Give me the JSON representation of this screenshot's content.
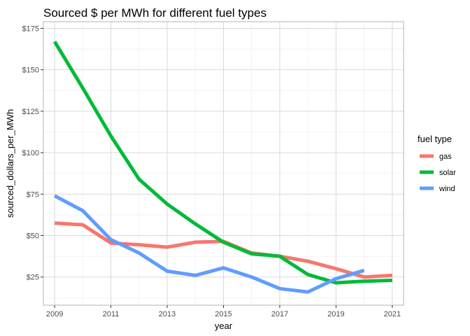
{
  "chart_data": {
    "type": "line",
    "title": "Sourced $ per MWh for different fuel types",
    "xlabel": "year",
    "ylabel": "sourced_dollars_per_MWh",
    "xlim": [
      2008.6,
      2021.4
    ],
    "ylim": [
      8,
      179
    ],
    "x_ticks": [
      2009,
      2011,
      2013,
      2015,
      2017,
      2019,
      2021
    ],
    "y_ticks": [
      25,
      50,
      75,
      100,
      125,
      150,
      175
    ],
    "y_tick_labels": [
      "$25",
      "$50",
      "$75",
      "$100",
      "$125",
      "$150",
      "$175"
    ],
    "grid": true,
    "legend": {
      "title": "fuel type",
      "position": "right"
    },
    "series": [
      {
        "name": "gas",
        "color": "#F8766D",
        "x": [
          2009,
          2010,
          2011,
          2012,
          2013,
          2014,
          2015,
          2016,
          2017,
          2018,
          2019,
          2020,
          2021
        ],
        "values": [
          57.5,
          56.5,
          45.5,
          44.5,
          43,
          46,
          46.5,
          39.5,
          37.5,
          34.5,
          30,
          25,
          26
        ]
      },
      {
        "name": "solar",
        "color": "#00BA38",
        "x": [
          2009,
          2010,
          2011,
          2012,
          2013,
          2014,
          2015,
          2016,
          2017,
          2018,
          2019,
          2020,
          2021
        ],
        "values": [
          167,
          139,
          110,
          84,
          69,
          57,
          46,
          39,
          37.5,
          26.5,
          21.5,
          22.5,
          23
        ]
      },
      {
        "name": "wind",
        "color": "#619CFF",
        "x": [
          2009,
          2010,
          2011,
          2012,
          2013,
          2014,
          2015,
          2016,
          2017,
          2018,
          2019,
          2020
        ],
        "values": [
          74,
          65,
          47.5,
          39.5,
          28.5,
          26,
          30.5,
          25,
          18,
          16,
          24,
          29
        ]
      }
    ]
  }
}
